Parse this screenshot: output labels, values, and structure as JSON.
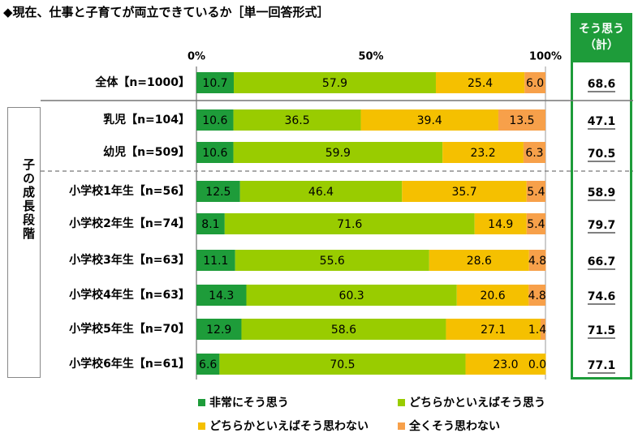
{
  "title": "◆現在、仕事と子育てが両立できているか［単一回答形式］",
  "summary": {
    "header_line1": "そう思う",
    "header_line2": "（計）"
  },
  "group_label": "子の成長段階",
  "colors": {
    "series": [
      "#1e9c3a",
      "#99cc00",
      "#f5c000",
      "#f7a04a"
    ],
    "summary_border": "#1e9c3a"
  },
  "chart_data": {
    "type": "bar",
    "orientation": "horizontal",
    "stacked": true,
    "xlim": [
      0,
      100
    ],
    "x_ticks": [
      "0%",
      "50%",
      "100%"
    ],
    "categories": [
      "全体【n=1000】",
      "乳児【n=104】",
      "幼児【n=509】",
      "小学校1年生【n=56】",
      "小学校2年生【n=74】",
      "小学校3年生【n=63】",
      "小学校4年生【n=63】",
      "小学校5年生【n=70】",
      "小学校6年生【n=61】"
    ],
    "series": [
      {
        "name": "非常にそう思う",
        "values": [
          "10.7",
          "10.6",
          "10.6",
          "12.5",
          "8.1",
          "11.1",
          "14.3",
          "12.9",
          "6.6"
        ]
      },
      {
        "name": "どちらかといえばそう思う",
        "values": [
          "57.9",
          "36.5",
          "59.9",
          "46.4",
          "71.6",
          "55.6",
          "60.3",
          "58.6",
          "70.5"
        ]
      },
      {
        "name": "どちらかといえばそう思わない",
        "values": [
          "25.4",
          "39.4",
          "23.2",
          "35.7",
          "14.9",
          "28.6",
          "20.6",
          "27.1",
          "23.0"
        ]
      },
      {
        "name": "全くそう思わない",
        "values": [
          "6.0",
          "13.5",
          "6.3",
          "5.4",
          "5.4",
          "4.8",
          "4.8",
          "1.4",
          "0.0"
        ]
      }
    ],
    "totals": [
      "68.6",
      "47.1",
      "70.5",
      "58.9",
      "79.7",
      "66.7",
      "74.6",
      "71.5",
      "77.1"
    ]
  }
}
